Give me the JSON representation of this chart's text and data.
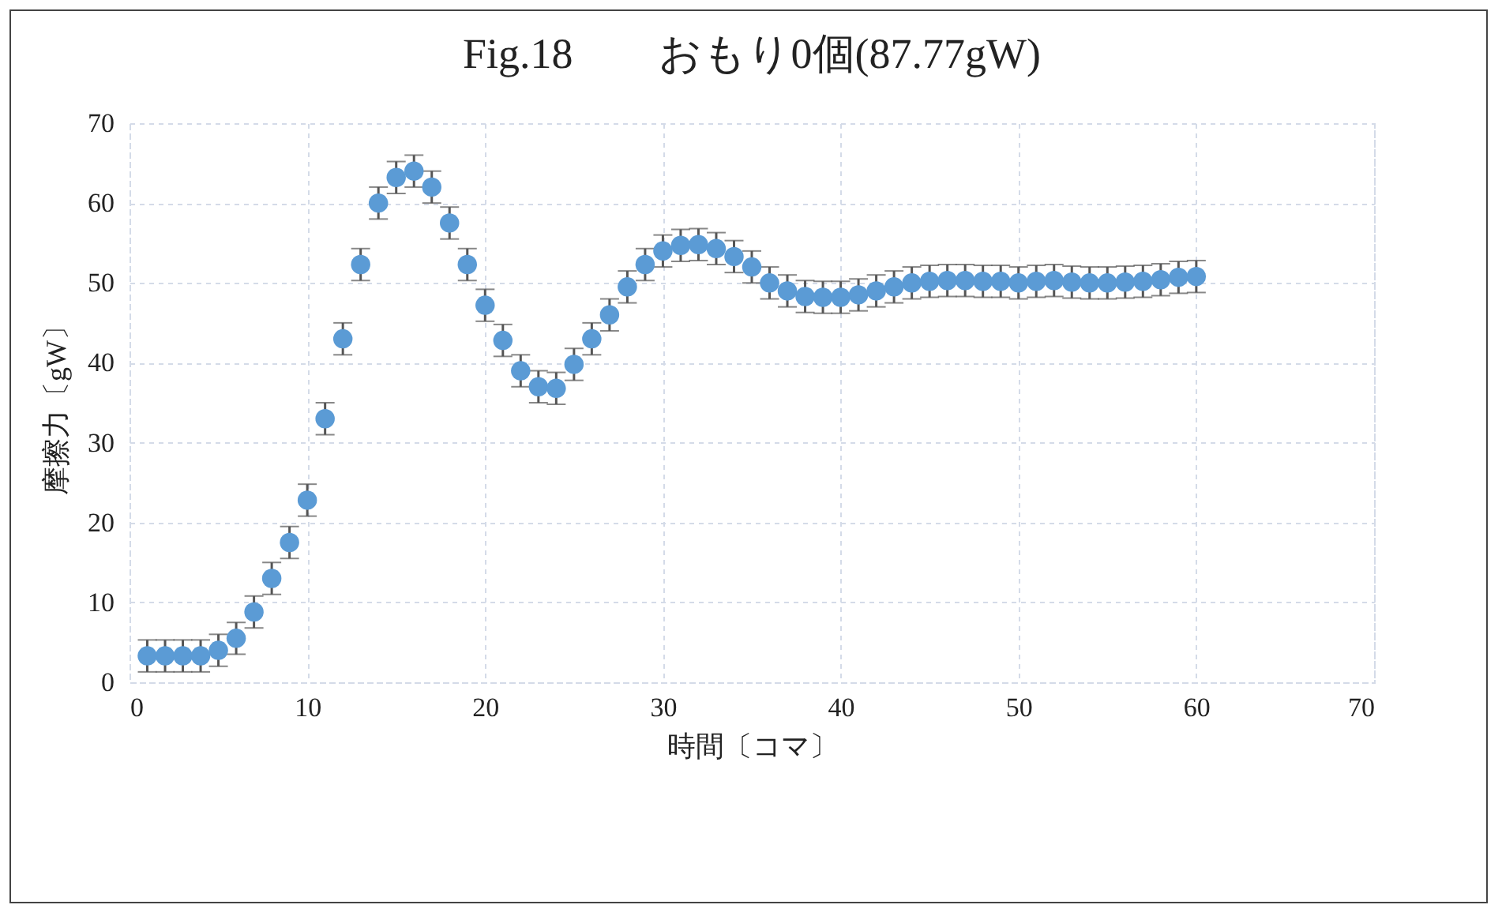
{
  "chart_data": {
    "type": "scatter",
    "title": "Fig.18　　おもり0個(87.77gW)",
    "xlabel": "時間〔コマ〕",
    "ylabel": "摩擦力〔gW〕",
    "x": [
      1,
      2,
      3,
      4,
      5,
      6,
      7,
      8,
      9,
      10,
      11,
      12,
      13,
      14,
      15,
      16,
      17,
      18,
      19,
      20,
      21,
      22,
      23,
      24,
      25,
      26,
      27,
      28,
      29,
      30,
      31,
      32,
      33,
      34,
      35,
      36,
      37,
      38,
      39,
      40,
      41,
      42,
      43,
      44,
      45,
      46,
      47,
      48,
      49,
      50,
      51,
      52,
      53,
      54,
      55,
      56,
      57,
      58,
      59,
      60
    ],
    "series": [
      {
        "color": "#5b9bd5",
        "values": [
          3.3,
          3.3,
          3.3,
          3.3,
          4,
          5.5,
          8.8,
          13,
          17.5,
          22.8,
          33,
          43,
          52.3,
          60,
          63.2,
          64,
          62,
          57.5,
          52.3,
          47.2,
          42.8,
          39,
          37,
          36.8,
          39.8,
          43,
          46,
          49.5,
          52.3,
          54,
          54.7,
          54.8,
          54.3,
          53.3,
          52,
          50,
          49,
          48.3,
          48.2,
          48.2,
          48.5,
          49,
          49.5,
          50,
          50.2,
          50.3,
          50.3,
          50.2,
          50.2,
          50,
          50.2,
          50.3,
          50.1,
          50,
          50,
          50.1,
          50.2,
          50.4,
          50.7,
          50.8
        ],
        "errors": [
          2,
          2,
          2,
          2,
          2,
          2,
          2,
          2,
          2,
          2,
          2,
          2,
          2,
          2,
          2,
          2,
          2,
          2,
          2,
          2,
          2,
          2,
          2,
          2,
          2,
          2,
          2,
          2,
          2,
          2,
          2,
          2,
          2,
          2,
          2,
          2,
          2,
          2,
          2,
          2,
          2,
          2,
          2,
          2,
          2,
          2,
          2,
          2,
          2,
          2,
          2,
          2,
          2,
          2,
          2,
          2,
          2,
          2,
          2,
          2
        ]
      }
    ],
    "xlim": [
      0,
      70
    ],
    "xticks": [
      0,
      10,
      20,
      30,
      40,
      50,
      60,
      70
    ],
    "ylim": [
      0,
      70
    ],
    "yticks": [
      0,
      10,
      20,
      30,
      40,
      50,
      60,
      70
    ],
    "grid": true,
    "marker": "circle"
  }
}
